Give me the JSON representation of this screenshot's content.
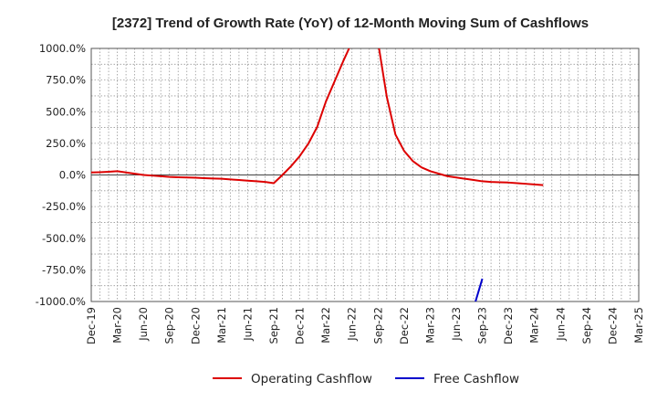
{
  "chart_data": {
    "type": "line",
    "title": "[2372]  Trend of Growth Rate (YoY) of 12-Month Moving Sum of Cashflows",
    "xlabel": "",
    "ylabel": "",
    "x_ticks": [
      "Dec-19",
      "Mar-20",
      "Jun-20",
      "Sep-20",
      "Dec-20",
      "Mar-21",
      "Jun-21",
      "Sep-21",
      "Dec-21",
      "Mar-22",
      "Jun-22",
      "Sep-22",
      "Dec-22",
      "Mar-23",
      "Jun-23",
      "Sep-23",
      "Dec-23",
      "Mar-24",
      "Jun-24",
      "Sep-24",
      "Dec-24",
      "Mar-25"
    ],
    "y_ticks": [
      "1000.0%",
      "750.0%",
      "500.0%",
      "250.0%",
      "0.0%",
      "-250.0%",
      "-500.0%",
      "-750.0%",
      "-1000.0%"
    ],
    "ylim": [
      -1000,
      1000
    ],
    "x_range": [
      "Dec-19",
      "Mar-25"
    ],
    "grid": true,
    "legend_position": "bottom",
    "series": [
      {
        "name": "Operating Cashflow",
        "color": "#dd0000",
        "points": [
          [
            "Dec-19",
            20
          ],
          [
            "Jan-20",
            22
          ],
          [
            "Feb-20",
            25
          ],
          [
            "Mar-20",
            30
          ],
          [
            "Apr-20",
            20
          ],
          [
            "May-20",
            10
          ],
          [
            "Jun-20",
            0
          ],
          [
            "Jul-20",
            -5
          ],
          [
            "Aug-20",
            -10
          ],
          [
            "Sep-20",
            -15
          ],
          [
            "Oct-20",
            -18
          ],
          [
            "Nov-20",
            -20
          ],
          [
            "Dec-20",
            -22
          ],
          [
            "Jan-21",
            -25
          ],
          [
            "Feb-21",
            -28
          ],
          [
            "Mar-21",
            -30
          ],
          [
            "Apr-21",
            -35
          ],
          [
            "May-21",
            -40
          ],
          [
            "Jun-21",
            -45
          ],
          [
            "Jul-21",
            -50
          ],
          [
            "Aug-21",
            -55
          ],
          [
            "Sep-21",
            -65
          ],
          [
            "Oct-21",
            0
          ],
          [
            "Nov-21",
            70
          ],
          [
            "Dec-21",
            150
          ],
          [
            "Jan-22",
            250
          ],
          [
            "Feb-22",
            380
          ],
          [
            "Mar-22",
            580
          ],
          [
            "Apr-22",
            740
          ],
          [
            "May-22",
            900
          ],
          [
            "Jun-22",
            1050
          ]
        ]
      },
      {
        "name": "Operating Cashflow",
        "color": "#dd0000",
        "points": [
          [
            "Sep-22",
            1050
          ],
          [
            "Oct-22",
            620
          ],
          [
            "Nov-22",
            320
          ],
          [
            "Dec-22",
            190
          ],
          [
            "Jan-23",
            110
          ],
          [
            "Feb-23",
            60
          ],
          [
            "Mar-23",
            30
          ],
          [
            "Apr-23",
            10
          ],
          [
            "May-23",
            -10
          ],
          [
            "Jun-23",
            -20
          ],
          [
            "Jul-23",
            -30
          ],
          [
            "Aug-23",
            -40
          ],
          [
            "Sep-23",
            -50
          ],
          [
            "Oct-23",
            -55
          ],
          [
            "Nov-23",
            -58
          ],
          [
            "Dec-23",
            -60
          ],
          [
            "Jan-24",
            -65
          ],
          [
            "Feb-24",
            -70
          ],
          [
            "Mar-24",
            -75
          ],
          [
            "Apr-24",
            -80
          ]
        ]
      },
      {
        "name": "Free Cashflow",
        "color": "#0000cc",
        "points": [
          [
            "Aug-23",
            -1050
          ],
          [
            "Sep-23",
            -820
          ]
        ]
      }
    ],
    "legend": [
      {
        "name": "Operating Cashflow",
        "color": "#dd0000"
      },
      {
        "name": "Free Cashflow",
        "color": "#0000cc"
      }
    ]
  }
}
